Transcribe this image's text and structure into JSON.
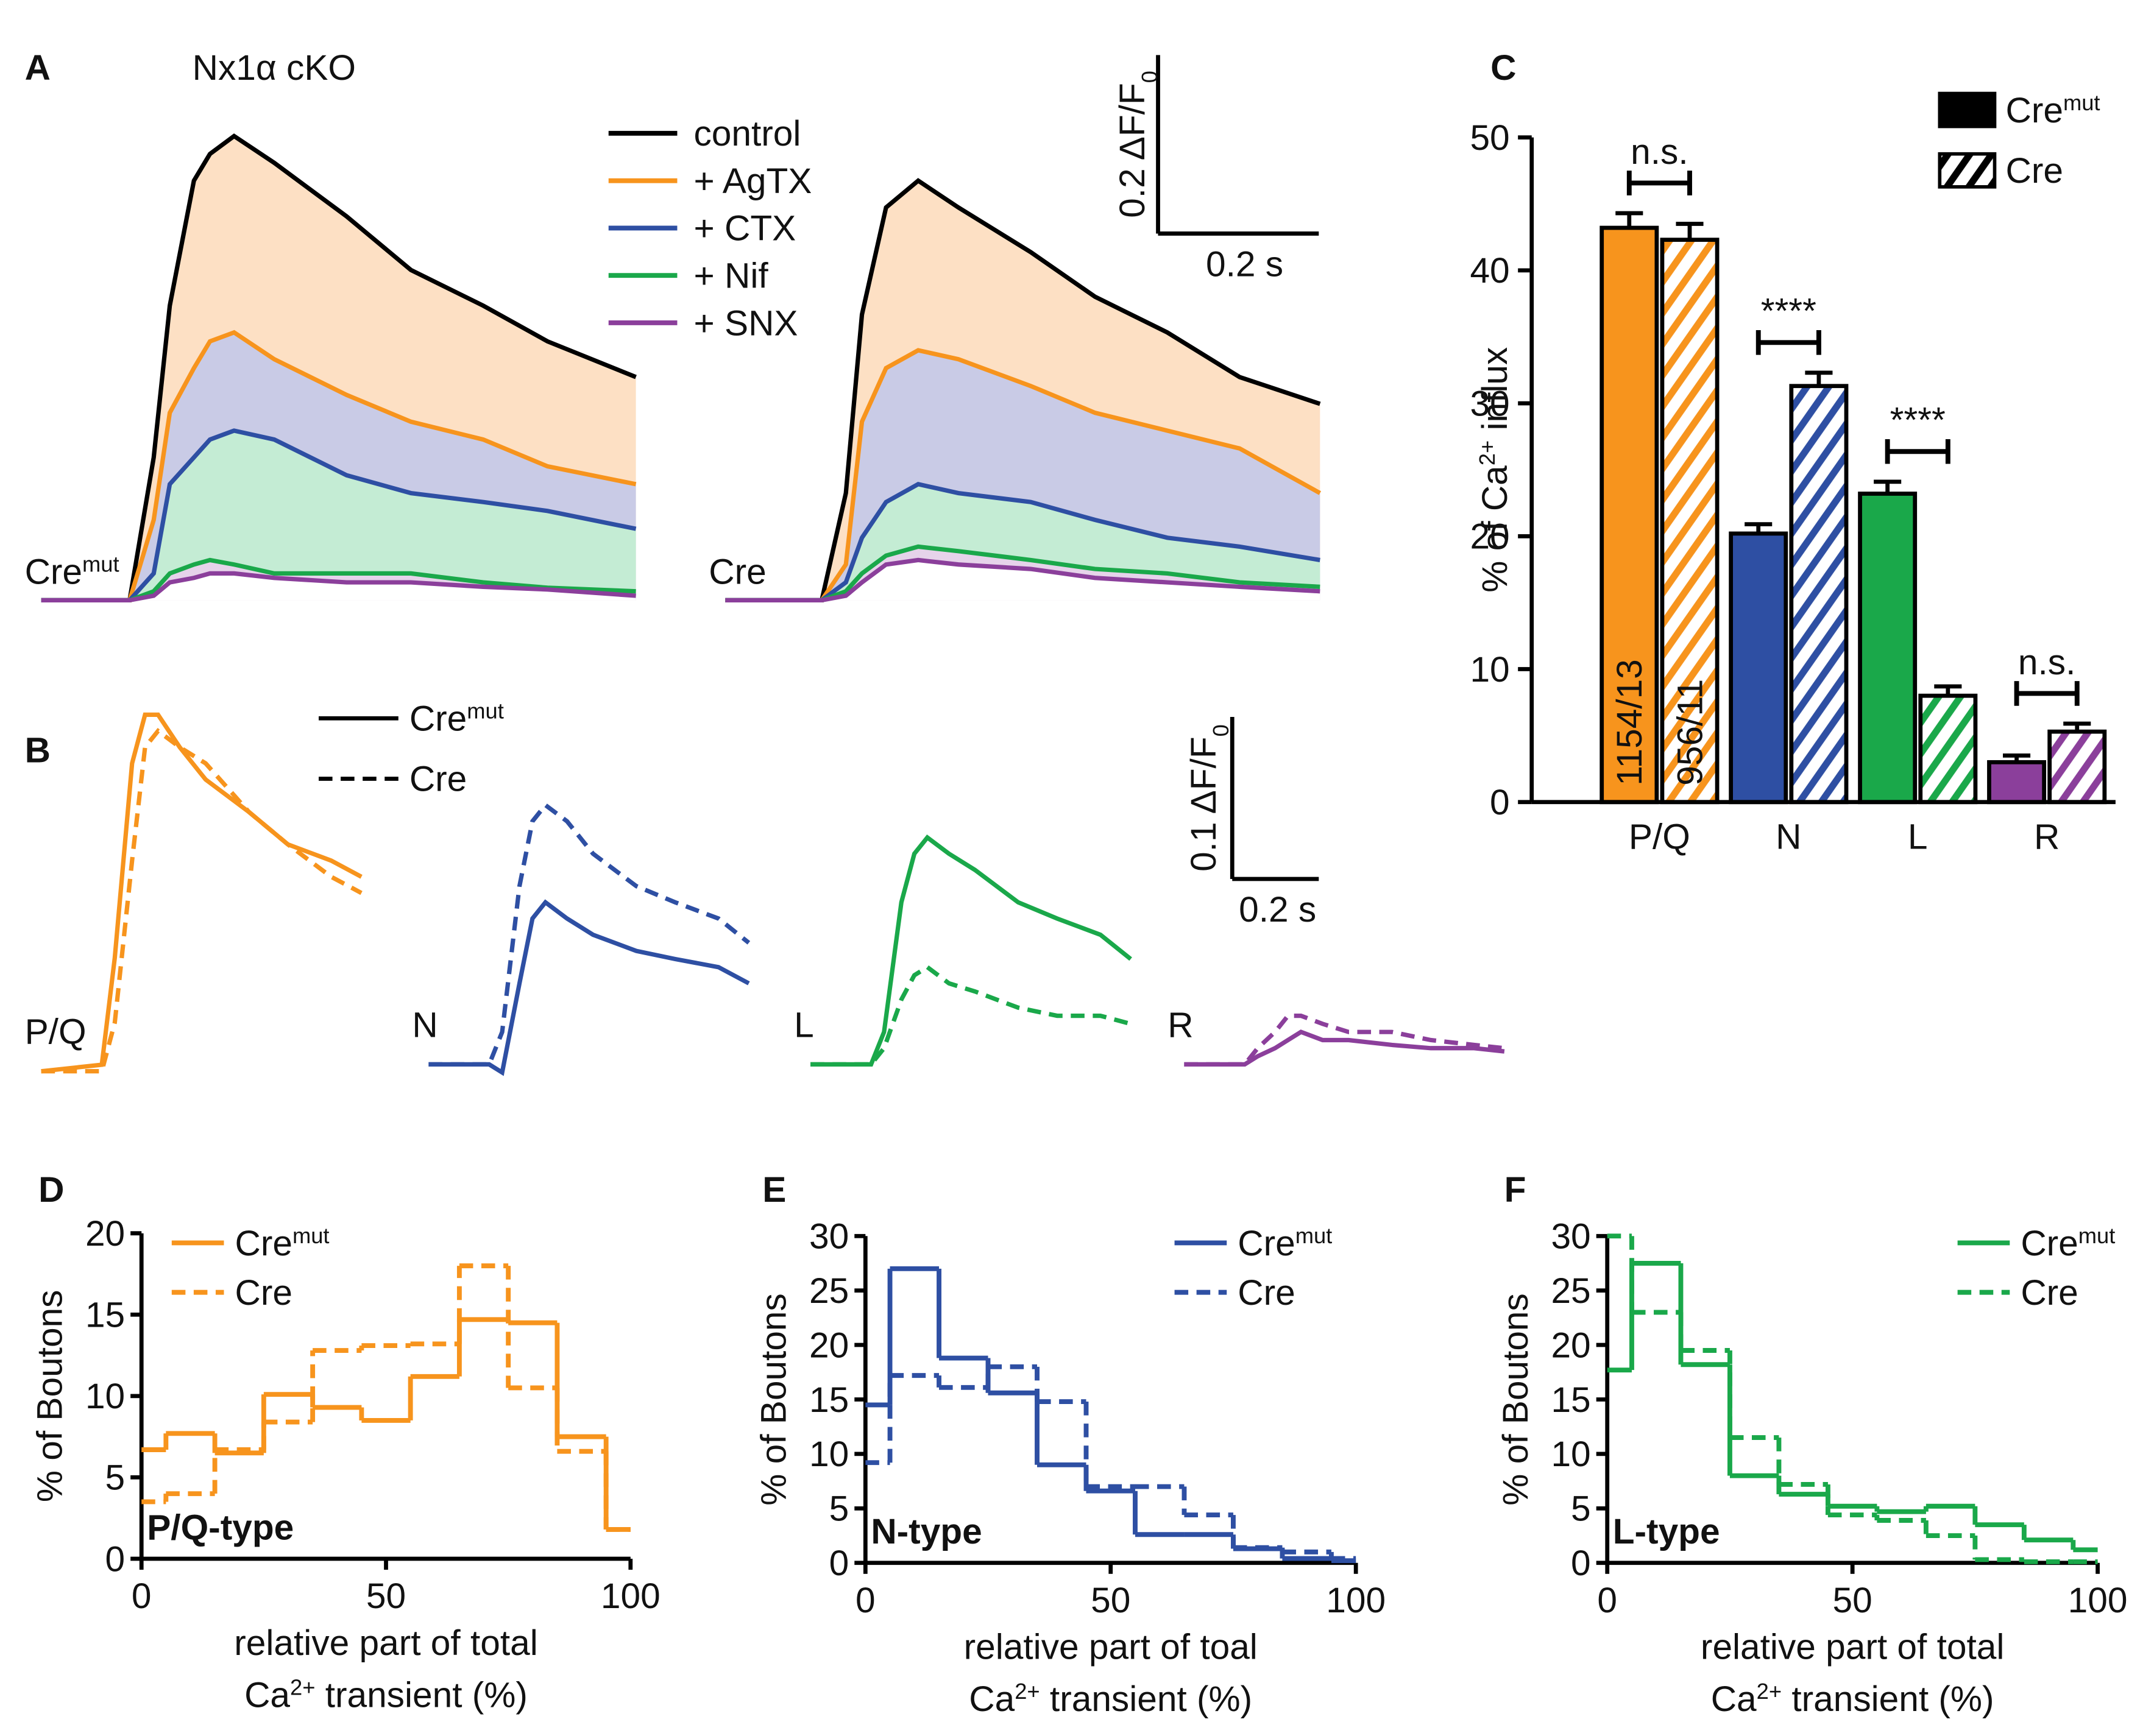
{
  "chart_data": [
    {
      "type": "area",
      "panel": "A",
      "title": "Nx1α cKO",
      "series": [
        {
          "name": "control",
          "color": "#000000",
          "fill": "#fde0c4"
        },
        {
          "name": "+ AgTX",
          "color": "#f7941d",
          "fill": "#c9cbe6"
        },
        {
          "name": "+ CTX",
          "color": "#2e4fa3",
          "fill": "#c4ecd4"
        },
        {
          "name": "+ Nif",
          "color": "#1aa84a",
          "fill": "#e6d3ea"
        },
        {
          "name": "+ SNX",
          "color": "#8b3f9b",
          "fill": "#ffffff"
        }
      ],
      "panels": [
        {
          "label": "Cre",
          "label_sup": "mut",
          "x": [
            0,
            0.11,
            0.14,
            0.16,
            0.19,
            0.21,
            0.24,
            0.29,
            0.38,
            0.46,
            0.55,
            0.63,
            0.74
          ],
          "values": [
            [
              0,
              0,
              0.16,
              0.33,
              0.47,
              0.5,
              0.52,
              0.49,
              0.43,
              0.37,
              0.33,
              0.29,
              0.25
            ],
            [
              0,
              0,
              0.09,
              0.21,
              0.26,
              0.29,
              0.3,
              0.27,
              0.23,
              0.2,
              0.18,
              0.15,
              0.13
            ],
            [
              0,
              0,
              0.03,
              0.13,
              0.16,
              0.18,
              0.19,
              0.18,
              0.14,
              0.12,
              0.11,
              0.1,
              0.08
            ],
            [
              0,
              0,
              0.01,
              0.03,
              0.04,
              0.045,
              0.04,
              0.03,
              0.03,
              0.03,
              0.02,
              0.014,
              0.01
            ],
            [
              0,
              0,
              0.005,
              0.02,
              0.025,
              0.03,
              0.03,
              0.025,
              0.02,
              0.02,
              0.015,
              0.012,
              0.005
            ]
          ]
        },
        {
          "label": "Cre",
          "x": [
            0,
            0.12,
            0.15,
            0.17,
            0.2,
            0.24,
            0.29,
            0.38,
            0.46,
            0.55,
            0.64,
            0.74
          ],
          "values": [
            [
              0,
              0,
              0.12,
              0.32,
              0.44,
              0.47,
              0.44,
              0.39,
              0.34,
              0.3,
              0.25,
              0.22
            ],
            [
              0,
              0,
              0.04,
              0.2,
              0.26,
              0.28,
              0.27,
              0.24,
              0.21,
              0.19,
              0.17,
              0.12
            ],
            [
              0,
              0,
              0.02,
              0.07,
              0.11,
              0.13,
              0.12,
              0.11,
              0.09,
              0.07,
              0.06,
              0.045
            ],
            [
              0,
              0,
              0.01,
              0.03,
              0.05,
              0.06,
              0.055,
              0.045,
              0.035,
              0.03,
              0.02,
              0.015
            ],
            [
              0,
              0,
              0.005,
              0.02,
              0.04,
              0.045,
              0.04,
              0.035,
              0.025,
              0.02,
              0.015,
              0.01
            ]
          ]
        }
      ],
      "scalebar": {
        "y_size": 0.2,
        "y_label": "0.2 ΔF/F",
        "y_label_sub": "0",
        "x_size": 0.2,
        "x_label": "0.2 s"
      }
    },
    {
      "type": "line",
      "panel": "B",
      "series": [
        {
          "name": "Cre",
          "name_sup": "mut",
          "dash": false
        },
        {
          "name": "Cre",
          "dash": true
        }
      ],
      "panels": [
        {
          "label": "P/Q",
          "color": "#f7941d",
          "x": [
            0,
            0.14,
            0.17,
            0.21,
            0.24,
            0.27,
            0.32,
            0.38,
            0.48,
            0.57,
            0.67,
            0.74
          ],
          "values": [
            [
              0,
              0.004,
              0.07,
              0.19,
              0.22,
              0.22,
              0.2,
              0.18,
              0.16,
              0.14,
              0.13,
              0.12
            ],
            [
              0,
              0,
              0.03,
              0.13,
              0.2,
              0.21,
              0.2,
              0.19,
              0.16,
              0.14,
              0.12,
              0.11
            ]
          ]
        },
        {
          "label": "N",
          "color": "#2e4fa3",
          "x": [
            0,
            0.14,
            0.17,
            0.21,
            0.24,
            0.27,
            0.32,
            0.38,
            0.48,
            0.57,
            0.67,
            0.74
          ],
          "values": [
            [
              0,
              0,
              -0.005,
              0.05,
              0.09,
              0.1,
              0.09,
              0.08,
              0.07,
              0.065,
              0.06,
              0.05
            ],
            [
              0,
              0,
              0.02,
              0.11,
              0.15,
              0.16,
              0.15,
              0.13,
              0.11,
              0.1,
              0.09,
              0.075
            ]
          ]
        },
        {
          "label": "L",
          "color": "#1aa84a",
          "x": [
            0,
            0.14,
            0.17,
            0.21,
            0.24,
            0.27,
            0.32,
            0.38,
            0.48,
            0.57,
            0.67,
            0.74
          ],
          "values": [
            [
              0,
              0,
              0.02,
              0.1,
              0.13,
              0.14,
              0.13,
              0.12,
              0.1,
              0.09,
              0.08,
              0.065
            ],
            [
              0,
              0,
              0.01,
              0.04,
              0.055,
              0.06,
              0.05,
              0.045,
              0.035,
              0.03,
              0.03,
              0.025
            ]
          ]
        },
        {
          "label": "R",
          "color": "#8b3f9b",
          "x": [
            0,
            0.14,
            0.17,
            0.21,
            0.24,
            0.27,
            0.32,
            0.38,
            0.48,
            0.57,
            0.67,
            0.74
          ],
          "values": [
            [
              0,
              0,
              0.005,
              0.01,
              0.015,
              0.02,
              0.015,
              0.015,
              0.012,
              0.01,
              0.01,
              0.008
            ],
            [
              0,
              0,
              0.01,
              0.02,
              0.03,
              0.03,
              0.025,
              0.02,
              0.02,
              0.015,
              0.012,
              0.01
            ]
          ]
        }
      ],
      "scalebar": {
        "y_size": 0.1,
        "y_label": "0.1 ΔF/F",
        "y_label_sub": "0",
        "x_size": 0.2,
        "x_label": "0.2 s"
      }
    },
    {
      "type": "bar",
      "panel": "C",
      "categories": [
        "P/Q",
        "N",
        "L",
        "R"
      ],
      "colors": [
        "#f7941d",
        "#2e4fa3",
        "#1aa84a",
        "#8b3f9b"
      ],
      "series": [
        {
          "name": "Cre",
          "name_sup": "mut",
          "hatch": false,
          "values": [
            43.2,
            20.2,
            23.2,
            3
          ],
          "errors": [
            1.1,
            0.7,
            0.9,
            0.5
          ]
        },
        {
          "name": "Cre",
          "hatch": true,
          "values": [
            42.3,
            31.3,
            8,
            5.3
          ],
          "errors": [
            1.2,
            1,
            0.7,
            0.6
          ]
        }
      ],
      "significance": [
        "n.s.",
        "****",
        "****",
        "n.s."
      ],
      "n_labels": [
        "1154/13",
        "956/11"
      ],
      "ylabel": "% of Ca",
      "ylabel_sup": "2+",
      "ylabel_post": " influx",
      "ylim": [
        0,
        50
      ],
      "yticks": [
        0,
        10,
        20,
        30,
        40,
        50
      ]
    },
    {
      "type": "histogram",
      "panel": "D",
      "label": "P/Q-type",
      "color": "#f7941d",
      "bins": [
        0,
        5,
        15,
        25,
        35,
        45,
        55,
        65,
        75,
        85,
        95,
        100
      ],
      "series": [
        {
          "name": "Cre",
          "name_sup": "mut",
          "dash": false,
          "values": [
            6.7,
            7.7,
            6.5,
            10.1,
            9.3,
            8.5,
            11.2,
            14.7,
            14.5,
            7.5,
            1.8
          ]
        },
        {
          "name": "Cre",
          "dash": true,
          "values": [
            3.5,
            4,
            6.7,
            8.4,
            12.8,
            13.1,
            13.2,
            18,
            10.5,
            6.6,
            1.8
          ]
        }
      ],
      "xlim": [
        0,
        100
      ],
      "xticks": [
        0,
        50,
        100
      ],
      "ylim": [
        0,
        20
      ],
      "yticks": [
        0,
        5,
        10,
        15,
        20
      ],
      "ylabel": "% of Boutons",
      "xlabel": "relative part of total",
      "xlabel2": "Ca",
      "xlabel2_sup": "2+",
      "xlabel2_post": " transient (%)"
    },
    {
      "type": "histogram",
      "panel": "E",
      "label": "N-type",
      "color": "#2e4fa3",
      "bins": [
        0,
        5,
        15,
        25,
        35,
        45,
        55,
        65,
        75,
        85,
        95,
        100
      ],
      "series": [
        {
          "name": "Cre",
          "name_sup": "mut",
          "dash": false,
          "values": [
            14.5,
            27,
            18.8,
            15.6,
            9,
            6.6,
            2.6,
            2.6,
            1.3,
            0.4,
            0.2
          ]
        },
        {
          "name": "Cre",
          "dash": true,
          "values": [
            9.2,
            17.2,
            16.1,
            18,
            14.8,
            7,
            7,
            4.4,
            1.4,
            1,
            0.4
          ]
        }
      ],
      "xlim": [
        0,
        100
      ],
      "xticks": [
        0,
        50,
        100
      ],
      "ylim": [
        0,
        30
      ],
      "yticks": [
        0,
        5,
        10,
        15,
        20,
        25,
        30
      ],
      "ylabel": "% of Boutons",
      "xlabel": "relative part of toal",
      "xlabel2": "Ca",
      "xlabel2_sup": "2+",
      "xlabel2_post": " transient (%)"
    },
    {
      "type": "histogram",
      "panel": "F",
      "label": "L-type",
      "color": "#1aa84a",
      "bins": [
        0,
        5,
        15,
        25,
        35,
        45,
        55,
        65,
        75,
        85,
        95,
        100
      ],
      "series": [
        {
          "name": "Cre",
          "name_sup": "mut",
          "dash": false,
          "values": [
            17.7,
            27.5,
            18.2,
            8,
            6.3,
            5.2,
            4.7,
            5.2,
            3.5,
            2.1,
            1.2
          ]
        },
        {
          "name": "Cre",
          "dash": true,
          "values": [
            30,
            23,
            19.5,
            11.5,
            7.2,
            4.4,
            3.9,
            2.5,
            0.3,
            0.1,
            0.1
          ]
        }
      ],
      "xlim": [
        0,
        100
      ],
      "xticks": [
        0,
        50,
        100
      ],
      "ylim": [
        0,
        30
      ],
      "yticks": [
        0,
        5,
        10,
        15,
        20,
        25,
        30
      ],
      "ylabel": "% of Boutons",
      "xlabel": "relative part of total",
      "xlabel2": "Ca",
      "xlabel2_sup": "2+",
      "xlabel2_post": " transient (%)"
    }
  ]
}
